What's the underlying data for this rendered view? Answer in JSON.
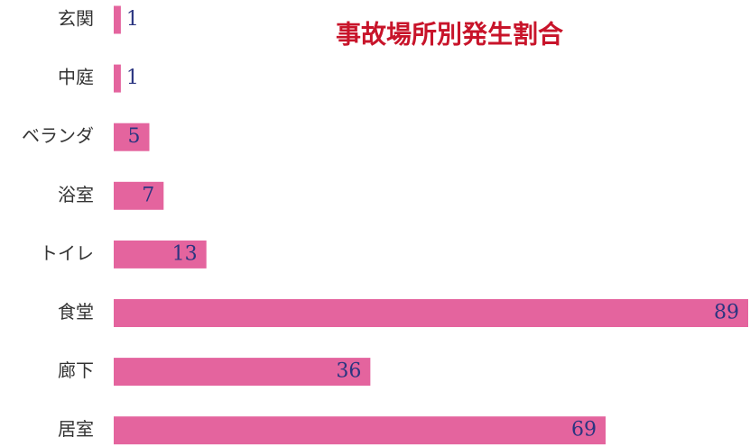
{
  "chart_data": {
    "type": "hbar",
    "title": "事故場所別発生割合",
    "categories": [
      "玄関",
      "中庭",
      "ベランダ",
      "浴室",
      "トイレ",
      "食堂",
      "廊下",
      "居室"
    ],
    "values": [
      1,
      1,
      5,
      7,
      13,
      89,
      36,
      69
    ],
    "color": "#e4649e"
  }
}
